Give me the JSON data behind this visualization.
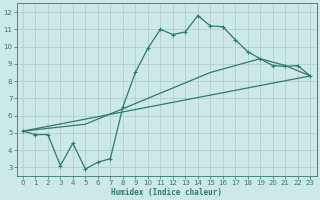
{
  "xlabel": "Humidex (Indice chaleur)",
  "xlim": [
    -0.5,
    23.5
  ],
  "ylim": [
    2.5,
    12.5
  ],
  "xticks": [
    0,
    1,
    2,
    3,
    4,
    5,
    6,
    7,
    8,
    9,
    10,
    11,
    12,
    13,
    14,
    15,
    16,
    17,
    18,
    19,
    20,
    21,
    22,
    23
  ],
  "yticks": [
    3,
    4,
    5,
    6,
    7,
    8,
    9,
    10,
    11,
    12
  ],
  "bg_color": "#cce8e8",
  "grid_color": "#aacccc",
  "line_color": "#2d7a72",
  "line1_x": [
    0,
    1,
    2,
    3,
    4,
    5,
    6,
    7,
    8,
    9,
    10,
    11,
    12,
    13,
    14,
    15,
    16,
    17,
    18,
    19,
    20,
    21,
    22,
    23
  ],
  "line1_y": [
    5.1,
    4.9,
    4.9,
    3.1,
    4.4,
    2.9,
    3.3,
    3.5,
    6.5,
    8.5,
    9.9,
    11.0,
    10.7,
    10.85,
    11.8,
    11.2,
    11.15,
    10.4,
    9.7,
    9.3,
    8.9,
    8.85,
    8.9,
    8.3
  ],
  "line2_x": [
    0,
    23
  ],
  "line2_y": [
    5.1,
    8.3
  ],
  "line3_x": [
    0,
    5,
    10,
    15,
    19,
    21,
    23
  ],
  "line3_y": [
    5.1,
    5.5,
    7.0,
    8.5,
    9.3,
    8.9,
    8.3
  ],
  "line1_marker": "+",
  "lw": 0.9,
  "ms": 3.0
}
